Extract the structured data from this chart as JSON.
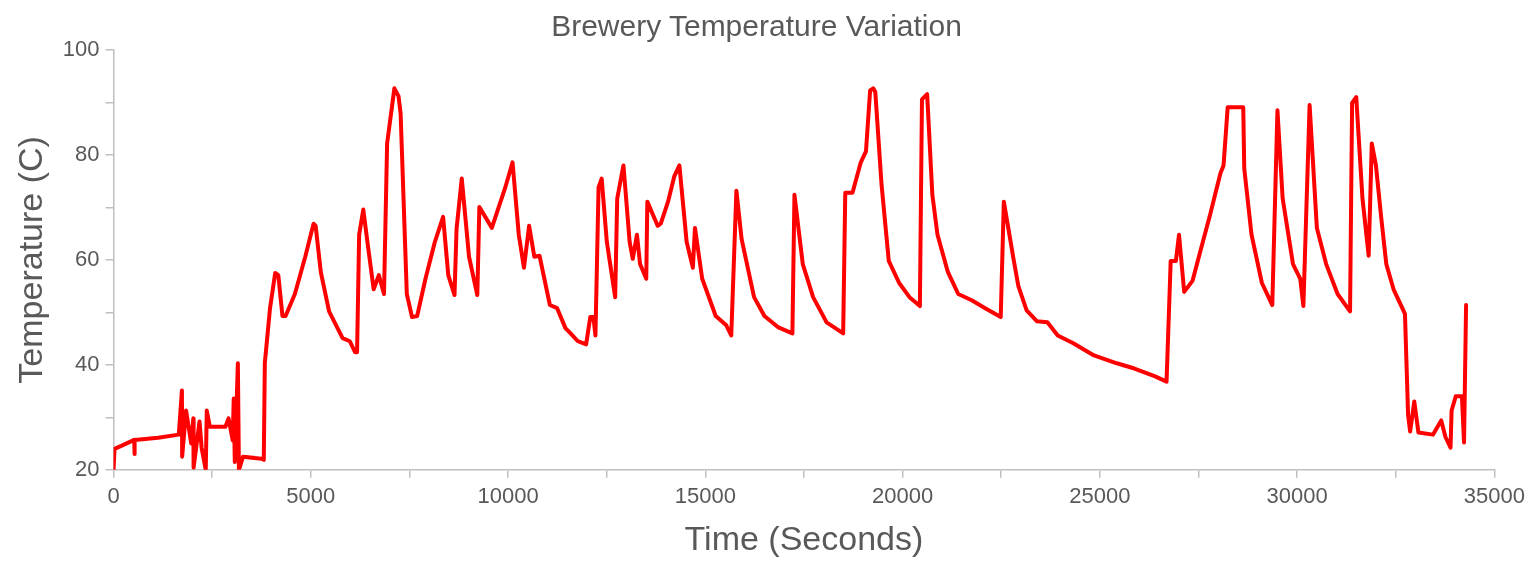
{
  "chart_data": {
    "type": "line",
    "title": "Brewery Temperature Variation",
    "xlabel": "Time (Seconds)",
    "ylabel": "Temperature (C)",
    "xlim": [
      0,
      35000
    ],
    "xticks": [
      0,
      {
        "value": 2500,
        "label": null
      },
      5000,
      {
        "value": 7500,
        "label": null
      },
      10000,
      {
        "value": 12500,
        "label": null
      },
      15000,
      {
        "value": 17500,
        "label": null
      },
      20000,
      {
        "value": 22500,
        "label": null
      },
      25000,
      {
        "value": 27500,
        "label": null
      },
      30000,
      {
        "value": 32500,
        "label": null
      },
      35000
    ],
    "ylim": [
      20,
      100
    ],
    "yticks": [
      20,
      {
        "value": 30,
        "label": null
      },
      40,
      {
        "value": 50,
        "label": null
      },
      60,
      {
        "value": 70,
        "label": null
      },
      80,
      {
        "value": 90,
        "label": null
      },
      100
    ],
    "grid": false,
    "legend": false,
    "marker": "none",
    "line_style": "solid",
    "series": [
      {
        "color": "#ff0000",
        "x": [
          0,
          26,
          210,
          525,
          530,
          540,
          1130,
          1655,
          1734,
          1740,
          1839,
          1970,
          2023,
          2030,
          2180,
          2233,
          2338,
          2364,
          2443,
          2837,
          2916,
          3021,
          3047,
          3074,
          3152,
          3179,
          3284,
          3757,
          3809,
          3835,
          3967,
          4098,
          4177,
          4282,
          4361,
          4597,
          4860,
          5070,
          5123,
          5254,
          5464,
          5806,
          5990,
          6121,
          6173,
          6226,
          6331,
          6436,
          6594,
          6725,
          6856,
          6935,
          7119,
          7224,
          7277,
          7434,
          7566,
          7697,
          7907,
          8144,
          8354,
          8485,
          8643,
          8695,
          8827,
          9011,
          9221,
          9273,
          9589,
          9930,
          10114,
          10272,
          10403,
          10534,
          10666,
          10797,
          11060,
          11244,
          11454,
          11585,
          11769,
          11979,
          12084,
          12163,
          12215,
          12294,
          12373,
          12504,
          12715,
          12767,
          12925,
          13082,
          13161,
          13267,
          13346,
          13503,
          13530,
          13792,
          13871,
          14055,
          14212,
          14343,
          14527,
          14685,
          14737,
          14921,
          15263,
          15525,
          15657,
          15788,
          15919,
          16235,
          16498,
          16839,
          17207,
          17259,
          17470,
          17732,
          18074,
          18494,
          18547,
          18730,
          18941,
          19072,
          19177,
          19256,
          19308,
          19466,
          19650,
          19913,
          20175,
          20438,
          20491,
          20622,
          20754,
          20885,
          21147,
          21410,
          21752,
          22093,
          22487,
          22566,
          22802,
          22934,
          23144,
          23407,
          23670,
          23932,
          24326,
          24851,
          25429,
          25876,
          26401,
          26690,
          26795,
          26927,
          27006,
          27137,
          27347,
          27584,
          27794,
          28056,
          28135,
          28240,
          28634,
          28660,
          28844,
          29107,
          29370,
          29501,
          29633,
          29895,
          30079,
          30158,
          30316,
          30500,
          30736,
          31025,
          31341,
          31393,
          31498,
          31656,
          31813,
          31892,
          31997,
          32129,
          32260,
          32444,
          32733,
          32812,
          32864,
          32969,
          33074,
          33442,
          33652,
          33757,
          33888,
          33915,
          34020,
          34177,
          34230,
          34282
        ],
        "values": [
          20,
          24,
          24.6,
          25.7,
          23,
          25.7,
          26.1,
          26.7,
          35.1,
          22.5,
          31.3,
          25,
          29.8,
          20.4,
          29.2,
          24.2,
          20,
          31.3,
          28.2,
          28.2,
          29.8,
          25.6,
          33.6,
          21.5,
          40.3,
          20,
          22.5,
          22.1,
          21.9,
          40.3,
          50.8,
          57.5,
          57.1,
          49.3,
          49.3,
          53.5,
          60.6,
          66.9,
          66.5,
          57.7,
          50.2,
          45.1,
          44.5,
          42.4,
          42.4,
          64.8,
          69.6,
          63.4,
          54.4,
          57.1,
          53.5,
          82.2,
          92.7,
          91.2,
          87.9,
          53.5,
          49.1,
          49.3,
          56.4,
          63.4,
          68.2,
          57.1,
          53.3,
          65.9,
          75.5,
          60.6,
          53.3,
          70.1,
          66.1,
          73.8,
          78.6,
          64.8,
          58.5,
          66.5,
          60.6,
          60.8,
          51.4,
          50.8,
          47,
          46,
          44.5,
          43.9,
          49.1,
          49.1,
          45.6,
          73.8,
          75.5,
          63.4,
          52.9,
          71.7,
          78,
          63.4,
          60.2,
          64.8,
          59.2,
          56.4,
          71.1,
          66.5,
          66.9,
          71.1,
          75.9,
          78,
          63.4,
          58.5,
          66.1,
          56.4,
          49.3,
          47.6,
          45.6,
          73.2,
          64,
          52.9,
          49.3,
          47.2,
          46,
          72.4,
          59.2,
          52.9,
          48.1,
          46,
          72.8,
          72.8,
          78.6,
          80.7,
          92.3,
          92.7,
          92,
          74.4,
          59.8,
          55.6,
          52.9,
          51.2,
          90.6,
          91.6,
          72.4,
          64.8,
          57.7,
          53.5,
          52.3,
          50.8,
          49.1,
          71.1,
          60.6,
          55,
          50.4,
          48.3,
          48.1,
          45.6,
          44.1,
          41.8,
          40.3,
          39.3,
          37.8,
          36.8,
          59.8,
          59.8,
          64.8,
          53.9,
          56,
          62.7,
          68.6,
          76.5,
          78,
          89.1,
          89.1,
          77.4,
          64.8,
          55.6,
          51.4,
          88.5,
          71.7,
          59.2,
          56.4,
          51.2,
          89.5,
          66.1,
          59.2,
          53.5,
          50.2,
          89.9,
          91,
          71.7,
          60.8,
          82.2,
          78,
          68.2,
          59.2,
          54.4,
          49.7,
          30.5,
          27.3,
          33,
          27.1,
          26.7,
          29.4,
          26.3,
          24.2,
          31.3,
          34,
          34,
          25.2,
          51.4
        ]
      }
    ]
  }
}
